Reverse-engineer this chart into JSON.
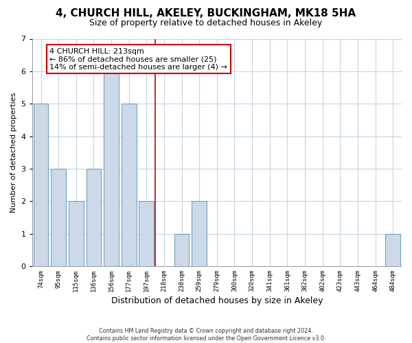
{
  "title": "4, CHURCH HILL, AKELEY, BUCKINGHAM, MK18 5HA",
  "subtitle": "Size of property relative to detached houses in Akeley",
  "xlabel": "Distribution of detached houses by size in Akeley",
  "ylabel": "Number of detached properties",
  "bar_labels": [
    "74sqm",
    "95sqm",
    "115sqm",
    "136sqm",
    "156sqm",
    "177sqm",
    "197sqm",
    "218sqm",
    "238sqm",
    "259sqm",
    "279sqm",
    "300sqm",
    "320sqm",
    "341sqm",
    "361sqm",
    "382sqm",
    "402sqm",
    "423sqm",
    "443sqm",
    "464sqm",
    "484sqm"
  ],
  "bar_values": [
    5,
    3,
    2,
    3,
    6,
    5,
    2,
    0,
    1,
    2,
    0,
    0,
    0,
    0,
    0,
    0,
    0,
    0,
    0,
    0,
    1
  ],
  "bar_color": "#ccd9e8",
  "bar_edge_color": "#6699bb",
  "highlight_line_index": 7,
  "highlight_line_color": "#cc0000",
  "annotation_text_line1": "4 CHURCH HILL: 213sqm",
  "annotation_text_line2": "← 86% of detached houses are smaller (25)",
  "annotation_text_line3": "14% of semi-detached houses are larger (4) →",
  "ylim": [
    0,
    7
  ],
  "yticks": [
    0,
    1,
    2,
    3,
    4,
    5,
    6,
    7
  ],
  "footnote_line1": "Contains HM Land Registry data © Crown copyright and database right 2024.",
  "footnote_line2": "Contains public sector information licensed under the Open Government Licence v3.0.",
  "bg_color": "#ffffff",
  "plot_bg_color": "#ffffff",
  "grid_color": "#c8d4e0",
  "title_fontsize": 11,
  "subtitle_fontsize": 9,
  "ylabel_fontsize": 8,
  "xlabel_fontsize": 9
}
